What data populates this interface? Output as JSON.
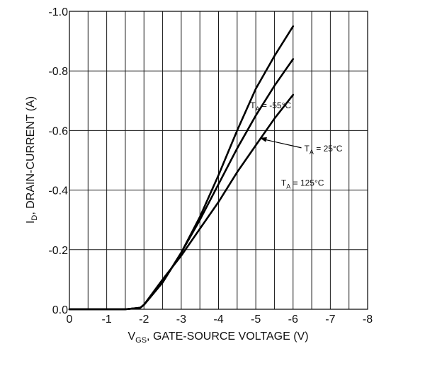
{
  "chart_data": {
    "type": "line",
    "xlabel_main": "V",
    "xlabel_sub": "GS",
    "xlabel_rest": ", GATE-SOURCE VOLTAGE (V)",
    "ylabel_main": "I",
    "ylabel_sub": "D",
    "ylabel_rest": ", DRAIN-CURRENT (A)",
    "xlim": [
      0,
      8
    ],
    "ylim": [
      0,
      1.0
    ],
    "xticks": [
      0,
      1,
      2,
      3,
      4,
      5,
      6,
      7,
      8
    ],
    "xtick_labels": [
      "0",
      "-1",
      "-2",
      "-3",
      "-4",
      "-5",
      "-6",
      "-7",
      "-8"
    ],
    "yticks": [
      0,
      0.2,
      0.4,
      0.6,
      0.8,
      1.0
    ],
    "ytick_labels": [
      "0.0",
      "-0.2",
      "-0.4",
      "-0.6",
      "-0.8",
      "-1.0"
    ],
    "grid": true,
    "series": [
      {
        "key": "tm55",
        "x": [
          0,
          1.5,
          1.9,
          2.0,
          2.5,
          3.0,
          3.5,
          4.0,
          4.5,
          5.0,
          5.5,
          6.0
        ],
        "y": [
          0,
          0,
          0.005,
          0.015,
          0.09,
          0.19,
          0.31,
          0.45,
          0.6,
          0.74,
          0.85,
          0.95
        ]
      },
      {
        "key": "t25",
        "x": [
          0,
          1.5,
          1.9,
          2.0,
          2.5,
          3.0,
          3.5,
          4.0,
          4.5,
          5.0,
          5.5,
          6.0
        ],
        "y": [
          0,
          0,
          0.005,
          0.015,
          0.09,
          0.19,
          0.3,
          0.42,
          0.54,
          0.65,
          0.75,
          0.84
        ]
      },
      {
        "key": "t125",
        "x": [
          0,
          1.5,
          1.9,
          2.0,
          2.5,
          3.0,
          3.5,
          4.0,
          4.5,
          5.0,
          5.5,
          6.0
        ],
        "y": [
          0,
          0,
          0.005,
          0.015,
          0.1,
          0.18,
          0.27,
          0.36,
          0.46,
          0.55,
          0.64,
          0.72
        ]
      }
    ],
    "annotations": [
      {
        "key": "tm55",
        "main": "T",
        "sub": "A",
        "rest": " = -55°C",
        "ax": 4.85,
        "ay": 0.675
      },
      {
        "key": "t25",
        "main": "T",
        "sub": "A",
        "rest": " = 25°C",
        "ax": 6.3,
        "ay": 0.53,
        "px": 5.1,
        "py": 0.575
      },
      {
        "key": "t125",
        "main": "T",
        "sub": "A",
        "rest": " = 125°C",
        "ax": 5.68,
        "ay": 0.415
      }
    ]
  }
}
